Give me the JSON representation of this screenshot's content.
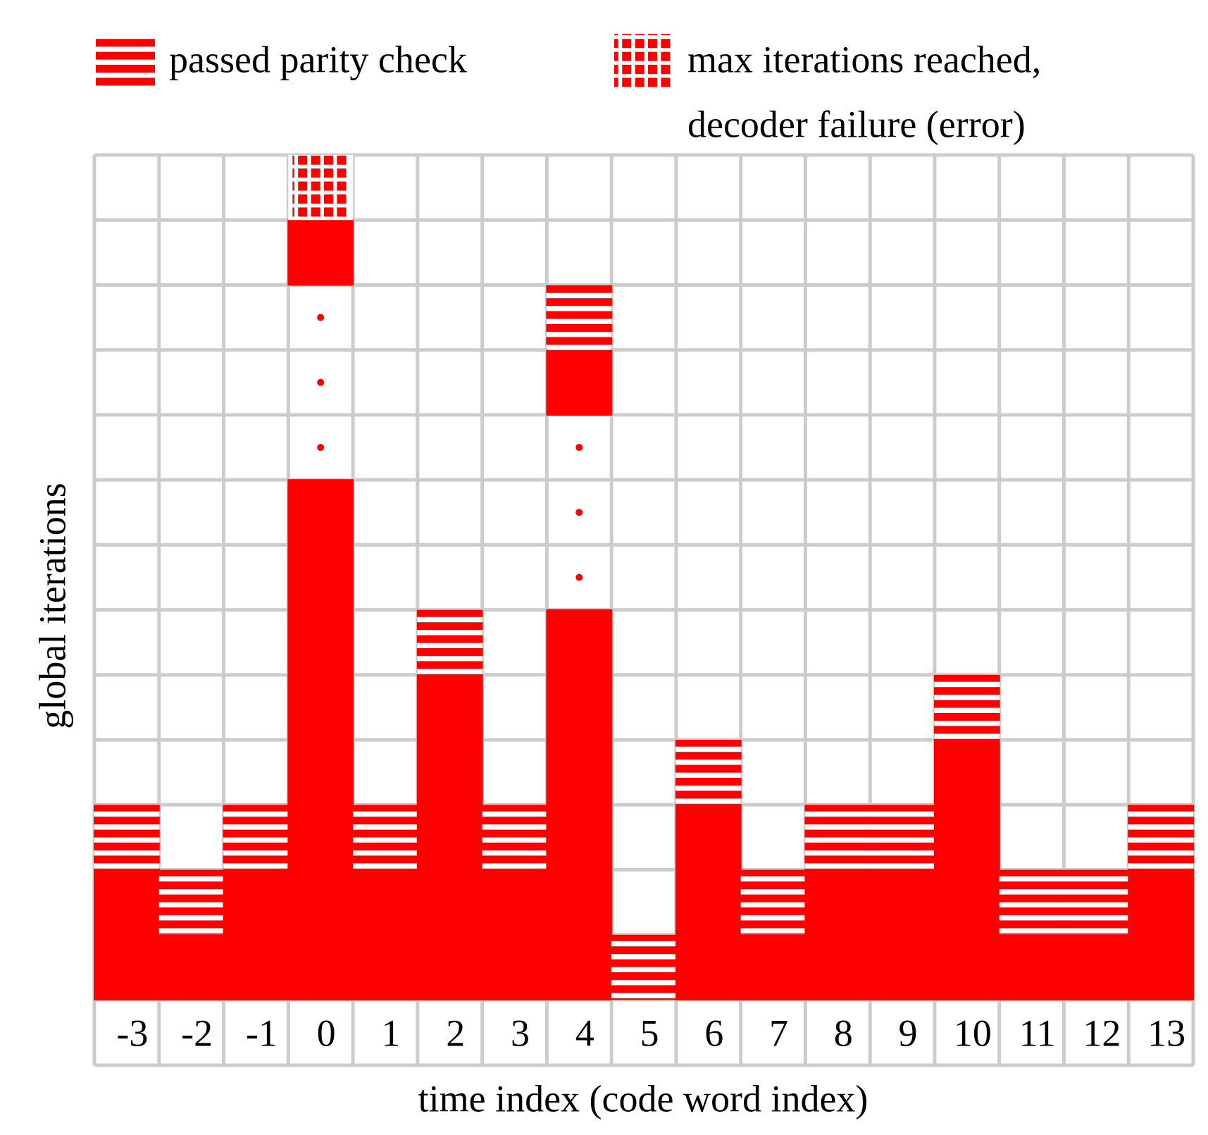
{
  "legend": {
    "passed": "passed parity check",
    "failure": [
      "max iterations reached,",
      "decoder failure (error)"
    ]
  },
  "y_label": "global iterations",
  "x_label": "time index (code word index)",
  "rows": 13,
  "columns": [
    {
      "label": "-3",
      "cells": 3,
      "end": "passed"
    },
    {
      "label": "-2",
      "cells": 2,
      "end": "passed"
    },
    {
      "label": "-1",
      "cells": 3,
      "end": "passed"
    },
    {
      "label": "0",
      "cells": 13,
      "gap": [
        9,
        11
      ],
      "end": "failure"
    },
    {
      "label": "1",
      "cells": 3,
      "end": "passed"
    },
    {
      "label": "2",
      "cells": 6,
      "end": "passed"
    },
    {
      "label": "3",
      "cells": 3,
      "end": "passed"
    },
    {
      "label": "4",
      "cells": 11,
      "gap": [
        7,
        9
      ],
      "end": "passed"
    },
    {
      "label": "5",
      "cells": 1,
      "end": "passed"
    },
    {
      "label": "6",
      "cells": 4,
      "end": "passed"
    },
    {
      "label": "7",
      "cells": 2,
      "end": "passed"
    },
    {
      "label": "8",
      "cells": 3,
      "end": "passed"
    },
    {
      "label": "9",
      "cells": 3,
      "end": "passed"
    },
    {
      "label": "10",
      "cells": 5,
      "end": "passed"
    },
    {
      "label": "11",
      "cells": 2,
      "end": "passed"
    },
    {
      "label": "12",
      "cells": 2,
      "end": "passed"
    },
    {
      "label": "13",
      "cells": 3,
      "end": "passed"
    }
  ]
}
